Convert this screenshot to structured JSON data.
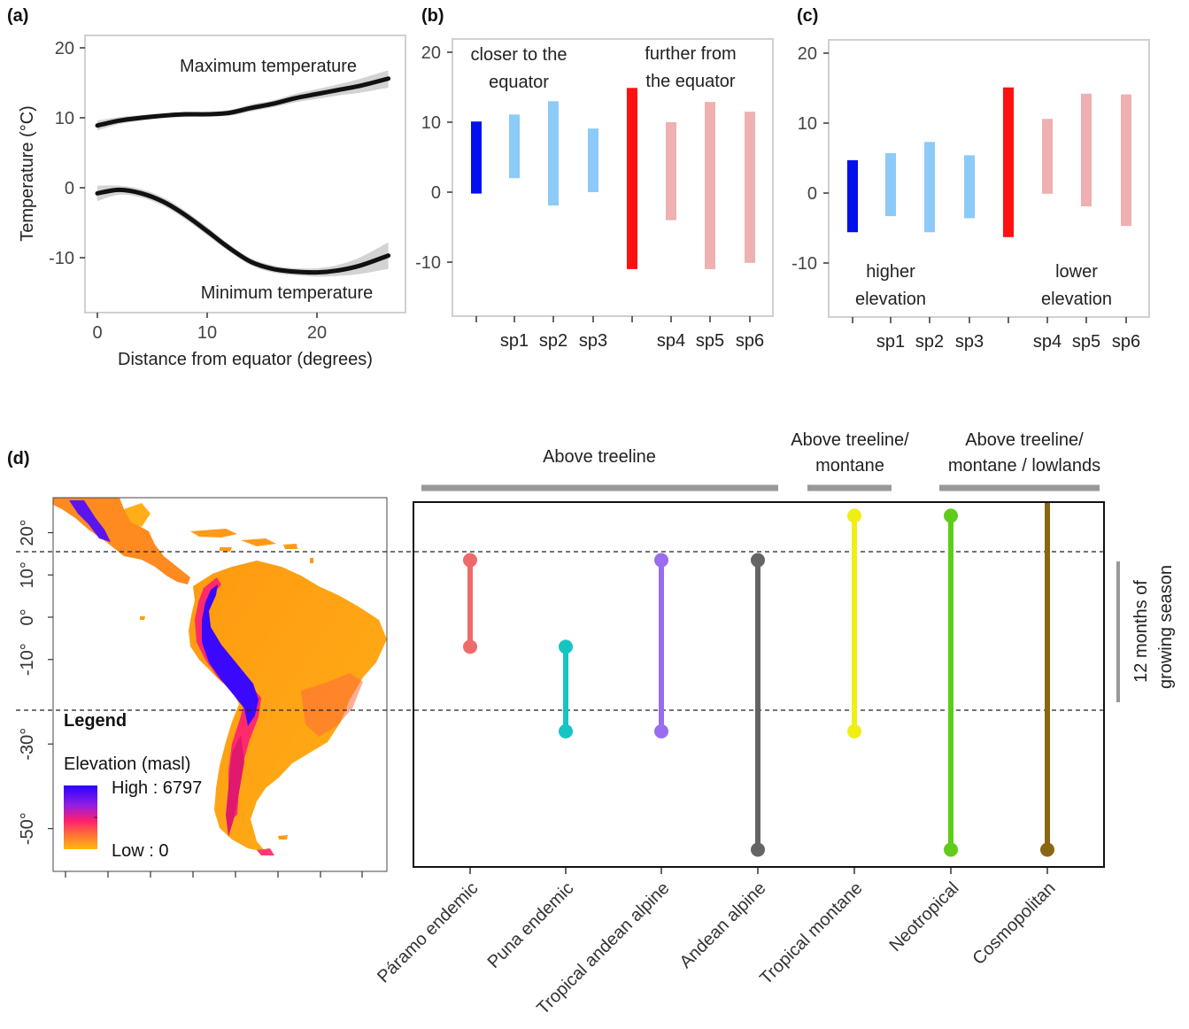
{
  "figure": {
    "labels": [
      "(a)",
      "(b)",
      "(c)",
      "(d)"
    ],
    "colors": {
      "frame": "#d0d0d0",
      "ribbon": "#d3d3d3",
      "line": "#111111",
      "blue": "#0011ee",
      "light_blue": "#8ccaf7",
      "red": "#ff1111",
      "light_red": "#eeb0b0",
      "group_bar": "#999999"
    }
  },
  "chart_data": [
    {
      "id": "a",
      "type": "line",
      "xlabel": "Distance from equator (degrees)",
      "ylabel": "Temperature (°C)",
      "xlim": [
        -1,
        27
      ],
      "ylim": [
        -17,
        22
      ],
      "xticks": [
        0,
        10,
        20
      ],
      "yticks": [
        20,
        10,
        0,
        -10
      ],
      "grid": false,
      "annotations": [
        "Maximum temperature",
        "Minimum temperature"
      ],
      "series": [
        {
          "name": "Maximum temperature",
          "x": [
            0,
            2,
            4,
            6,
            8,
            10,
            12,
            14,
            16,
            18,
            20,
            22,
            24,
            26.5
          ],
          "y": [
            8.9,
            9.6,
            10.0,
            10.3,
            10.5,
            10.5,
            10.7,
            11.4,
            12.0,
            12.8,
            13.4,
            14.0,
            14.6,
            15.6
          ],
          "lower": [
            8.2,
            9.1,
            9.6,
            10.0,
            10.1,
            10.2,
            10.3,
            10.9,
            11.5,
            12.2,
            12.7,
            13.2,
            13.6,
            14.3
          ],
          "upper": [
            9.6,
            10.1,
            10.4,
            10.6,
            10.8,
            10.8,
            11.1,
            11.9,
            12.5,
            13.4,
            14.1,
            14.8,
            15.6,
            16.8
          ]
        },
        {
          "name": "Minimum temperature",
          "x": [
            0,
            2,
            4,
            6,
            8,
            10,
            12,
            14,
            16,
            18,
            20,
            22,
            24,
            26.5
          ],
          "y": [
            -0.8,
            -0.3,
            -0.8,
            -2.0,
            -3.9,
            -6.2,
            -8.6,
            -10.6,
            -11.6,
            -12.0,
            -12.1,
            -11.8,
            -11.1,
            -9.7
          ],
          "lower": [
            -1.9,
            -1.0,
            -1.4,
            -2.6,
            -4.5,
            -6.8,
            -9.1,
            -11.1,
            -12.1,
            -12.5,
            -12.7,
            -12.6,
            -12.3,
            -11.6
          ],
          "upper": [
            0.3,
            0.3,
            -0.2,
            -1.4,
            -3.3,
            -5.6,
            -8.1,
            -10.1,
            -11.1,
            -11.5,
            -11.5,
            -11.0,
            -9.9,
            -7.8
          ]
        }
      ]
    },
    {
      "id": "b",
      "type": "bar",
      "ylim": [
        -17.5,
        21.5
      ],
      "yticks": [
        20,
        10,
        0,
        -10
      ],
      "categories": [
        "",
        "sp1",
        "sp2",
        "sp3",
        "",
        "sp4",
        "sp5",
        "sp6"
      ],
      "ranges": [
        [
          -0.2,
          10.1
        ],
        [
          2.0,
          11.1
        ],
        [
          -1.9,
          13.0
        ],
        [
          0.0,
          9.1
        ],
        [
          -11.0,
          14.9
        ],
        [
          -4.0,
          10.0
        ],
        [
          -11.0,
          12.9
        ],
        [
          -10.1,
          11.5
        ]
      ],
      "bar_colors": [
        "#0011ee",
        "#8ccaf7",
        "#8ccaf7",
        "#8ccaf7",
        "#ff1111",
        "#eeb0b0",
        "#eeb0b0",
        "#eeb0b0"
      ],
      "annotations": [
        [
          "closer to the",
          "equator"
        ],
        [
          "further from",
          "the equator"
        ]
      ]
    },
    {
      "id": "c",
      "type": "bar",
      "ylim": [
        -17.5,
        21.5
      ],
      "yticks": [
        20,
        10,
        0,
        -10
      ],
      "categories": [
        "",
        "sp1",
        "sp2",
        "sp3",
        "",
        "sp4",
        "sp5",
        "sp6"
      ],
      "ranges": [
        [
          -5.6,
          4.7
        ],
        [
          -3.3,
          5.7
        ],
        [
          -5.6,
          7.3
        ],
        [
          -3.6,
          5.4
        ],
        [
          -6.3,
          15.1
        ],
        [
          -0.1,
          10.6
        ],
        [
          -1.9,
          14.2
        ],
        [
          -4.7,
          14.1
        ]
      ],
      "bar_colors": [
        "#0011ee",
        "#8ccaf7",
        "#8ccaf7",
        "#8ccaf7",
        "#ff1111",
        "#eeb0b0",
        "#eeb0b0",
        "#eeb0b0"
      ],
      "annotations": [
        [
          "higher",
          "elevation"
        ],
        [
          "lower",
          "elevation"
        ]
      ]
    },
    {
      "id": "d",
      "type": "scatter",
      "ylim": [
        -58,
        27
      ],
      "yticks": [
        "20°",
        "10°",
        "0°",
        "-10°",
        "-30°",
        "-50°"
      ],
      "ytick_values": [
        20,
        10,
        0,
        -10,
        -30,
        -50
      ],
      "dashed_lines": [
        15.5,
        -22
      ],
      "legend_title": "Legend",
      "legend_subtitle": "Elevation (masl)",
      "legend_high": "High : 6797",
      "legend_low": "Low : 0",
      "gradient": [
        "#2a00ff",
        "#8e1ee6",
        "#ff1e6e",
        "#ff7a30",
        "#ffb810"
      ],
      "categories": [
        "Páramo endemic",
        "Puna endemic",
        "Tropical andean alpine",
        "Andean alpine",
        "Tropical montane",
        "Neotropical",
        "Cosmopolitan"
      ],
      "ranges": [
        [
          -7,
          13.5
        ],
        [
          -27,
          -7
        ],
        [
          -27,
          13.5
        ],
        [
          -55,
          13.5
        ],
        [
          -27,
          24
        ],
        [
          -55,
          24
        ],
        [
          -55,
          27
        ]
      ],
      "colors": [
        "#ef6b6b",
        "#16c4c4",
        "#9a6cee",
        "#646464",
        "#f1ee16",
        "#5fcc1a",
        "#8a6614"
      ],
      "groups": [
        "Above treeline",
        [
          "Above treeline/",
          "montane"
        ],
        [
          "Above treeline/",
          "montane / lowlands"
        ]
      ],
      "side_label": [
        "12 months of",
        "growing season"
      ]
    }
  ]
}
